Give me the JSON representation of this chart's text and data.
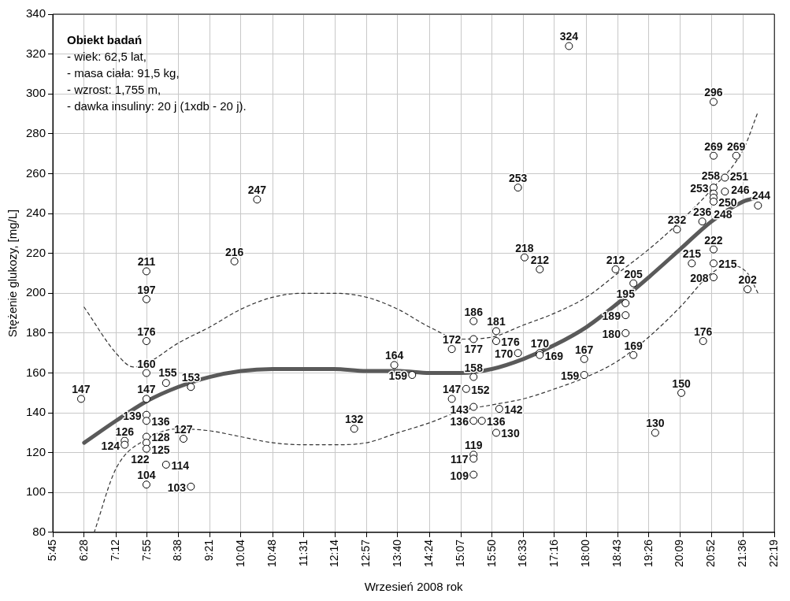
{
  "chart_data": {
    "type": "scatter",
    "xlabel": "Wrzesień 2008 rok",
    "ylabel": "Stężenie glukozy, [mg/L]",
    "annotations": [
      "Obiekt badań",
      "- wiek: 62,5 lat,",
      "- masa ciała: 91,5 kg,",
      "- wzrost: 1,755 m,",
      "- dawka insuliny: 20 j (1xdb - 20 j)."
    ],
    "xlim": [
      5.75,
      22.3167
    ],
    "xticks": [
      {
        "value": 5.75,
        "label": "5:45"
      },
      {
        "value": 6.4667,
        "label": "6:28"
      },
      {
        "value": 7.2,
        "label": "7:12"
      },
      {
        "value": 7.9167,
        "label": "7:55"
      },
      {
        "value": 8.6333,
        "label": "8:38"
      },
      {
        "value": 9.35,
        "label": "9:21"
      },
      {
        "value": 10.0667,
        "label": "10:04"
      },
      {
        "value": 10.8,
        "label": "10:48"
      },
      {
        "value": 11.5167,
        "label": "11:31"
      },
      {
        "value": 12.2333,
        "label": "12:14"
      },
      {
        "value": 12.95,
        "label": "12:57"
      },
      {
        "value": 13.6667,
        "label": "13:40"
      },
      {
        "value": 14.4,
        "label": "14:24"
      },
      {
        "value": 15.1167,
        "label": "15:07"
      },
      {
        "value": 15.8333,
        "label": "15:50"
      },
      {
        "value": 16.55,
        "label": "16:33"
      },
      {
        "value": 17.2667,
        "label": "17:16"
      },
      {
        "value": 18.0,
        "label": "18:00"
      },
      {
        "value": 18.7167,
        "label": "18:43"
      },
      {
        "value": 19.4333,
        "label": "19:26"
      },
      {
        "value": 20.15,
        "label": "20:09"
      },
      {
        "value": 20.8667,
        "label": "20:52"
      },
      {
        "value": 21.6,
        "label": "21:36"
      },
      {
        "value": 22.3167,
        "label": "22:19"
      }
    ],
    "ylim": [
      80,
      340
    ],
    "yticks": [
      80,
      100,
      120,
      140,
      160,
      180,
      200,
      220,
      240,
      260,
      280,
      300,
      320,
      340
    ],
    "grid": true,
    "legend": false,
    "series": [
      {
        "marker": "circle",
        "color": "#000000",
        "x": [
          6.4,
          7.4,
          7.4,
          7.9,
          7.9,
          7.9,
          7.9,
          7.9,
          7.9,
          7.9,
          7.9,
          7.9,
          7.9,
          7.9,
          8.35,
          8.35,
          8.75,
          8.92,
          8.92,
          9.92,
          10.44,
          12.67,
          13.59,
          14.0,
          14.91,
          14.91,
          15.24,
          15.41,
          15.41,
          15.41,
          15.41,
          15.41,
          15.41,
          15.41,
          15.41,
          15.6,
          15.93,
          15.93,
          15.93,
          16.0,
          16.43,
          16.43,
          16.58,
          16.93,
          16.93,
          16.93,
          17.6,
          17.95,
          17.95,
          18.67,
          18.9,
          18.9,
          18.9,
          19.08,
          19.08,
          19.58,
          20.08,
          20.18,
          20.42,
          20.66,
          20.68,
          20.92,
          20.92,
          20.92,
          20.92,
          20.92,
          20.92,
          20.92,
          20.92,
          20.92,
          21.18,
          21.18,
          21.44,
          21.7,
          21.94
        ],
        "values": [
          147,
          126,
          124,
          211,
          197,
          176,
          160,
          147,
          139,
          136,
          128,
          125,
          122,
          104,
          155,
          114,
          127,
          153,
          103,
          216,
          247,
          132,
          164,
          159,
          172,
          147,
          152,
          186,
          177,
          158,
          143,
          136,
          119,
          117,
          109,
          136,
          181,
          176,
          130,
          142,
          253,
          170,
          218,
          212,
          170,
          169,
          324,
          167,
          159,
          212,
          195,
          189,
          180,
          205,
          169,
          130,
          232,
          150,
          215,
          236,
          176,
          296,
          269,
          253,
          250,
          248,
          246,
          222,
          215,
          208,
          251,
          258,
          269,
          202,
          244
        ],
        "value_labels": [
          "147",
          "126",
          "124",
          "211",
          "197",
          "176",
          "160",
          "147",
          "139",
          "136",
          "128",
          "125",
          "122",
          "104",
          "155",
          "114",
          "127",
          "153",
          "103",
          "216",
          "247",
          "132",
          "164",
          "159",
          "172",
          "147",
          "152",
          "186",
          "177",
          "158",
          "143",
          "136",
          "119",
          "117",
          "109",
          "136",
          "181",
          "176",
          "130",
          "142",
          "253",
          "170",
          "218",
          "212",
          "170",
          "169",
          "324",
          "167",
          "159",
          "212",
          "195",
          "189",
          "180",
          "205",
          "169",
          "130",
          "232",
          "150",
          "215",
          "236",
          "176",
          "296",
          "269",
          "253",
          "250",
          "248",
          "246",
          "222",
          "215",
          "208",
          "251",
          "258",
          "269",
          "202",
          "244"
        ]
      },
      {
        "type": "line",
        "marker": "none",
        "line_style": "solid",
        "color": "#5a5a5a",
        "x": [
          6.47,
          7.2,
          7.92,
          8.63,
          9.35,
          10.07,
          10.8,
          11.5,
          12.2,
          12.95,
          13.67,
          14.4,
          15.12,
          15.83,
          16.55,
          17.27,
          18.0,
          18.72,
          19.43,
          20.15,
          20.87,
          21.6,
          21.94
        ],
        "values": [
          125,
          136,
          146,
          153,
          158,
          161,
          162,
          162,
          162,
          161,
          161,
          160,
          160,
          162,
          167,
          174,
          183,
          195,
          208,
          222,
          236,
          246,
          248
        ]
      },
      {
        "type": "line",
        "marker": "none",
        "line_style": "dashed",
        "color": "#333333",
        "x": [
          6.47,
          7.2,
          7.6,
          7.92,
          8.63,
          9.35,
          10.07,
          10.8,
          11.5,
          12.2,
          12.95,
          13.67,
          14.4,
          15.12,
          15.83,
          16.55,
          17.27,
          18.0,
          18.72,
          19.43,
          20.15,
          20.87,
          21.6,
          21.94
        ],
        "values": [
          193,
          170,
          163,
          165,
          175,
          183,
          192,
          198,
          200,
          200,
          198,
          192,
          183,
          177,
          178,
          184,
          190,
          198,
          210,
          222,
          236,
          252,
          272,
          291
        ]
      },
      {
        "type": "line",
        "marker": "none",
        "line_style": "dashed",
        "color": "#333333",
        "x": [
          6.7,
          7.2,
          7.92,
          8.63,
          9.35,
          10.07,
          10.8,
          11.5,
          12.2,
          12.95,
          13.67,
          14.4,
          15.12,
          15.83,
          16.55,
          17.27,
          18.0,
          18.72,
          19.43,
          20.15,
          20.87,
          21.3,
          21.7,
          21.94
        ],
        "values": [
          80,
          112,
          127,
          132,
          131,
          128,
          125,
          124,
          124,
          125,
          130,
          135,
          141,
          144,
          147,
          152,
          158,
          166,
          178,
          193,
          210,
          214,
          210,
          200
        ]
      }
    ]
  }
}
